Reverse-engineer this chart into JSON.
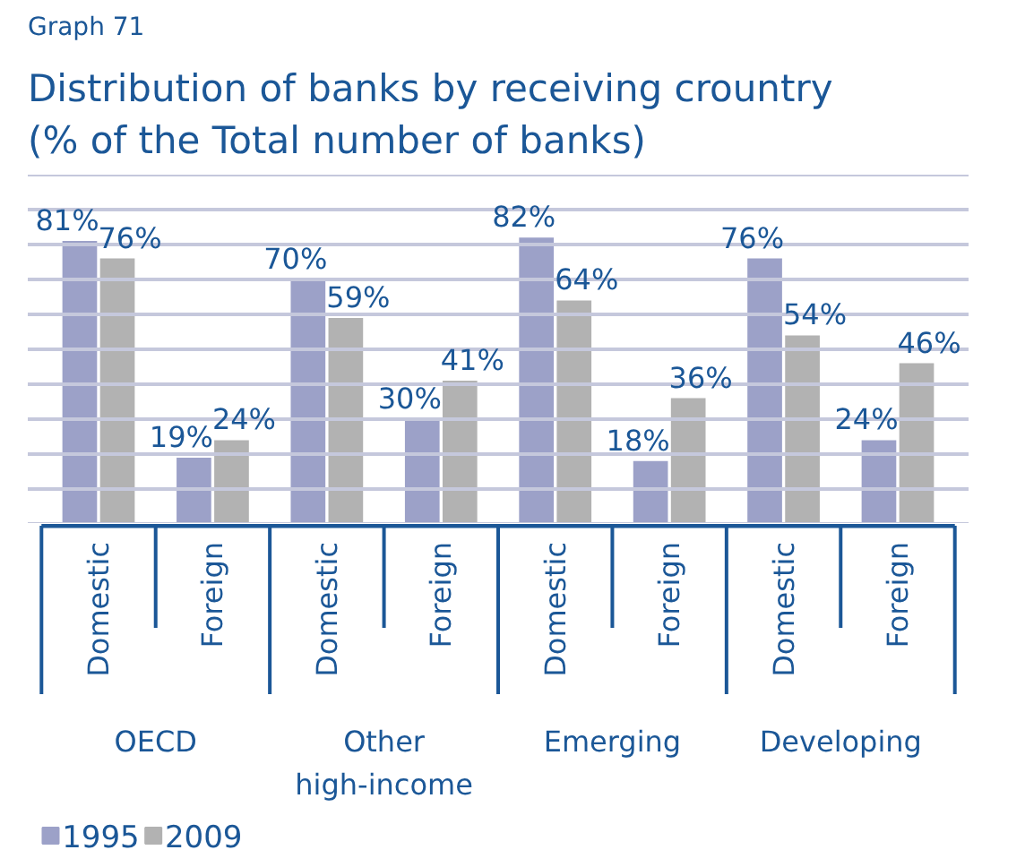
{
  "chart_data": {
    "type": "bar",
    "title": "Distribution of banks by receiving crountry\n(% of the Total number of banks)",
    "annotations": [
      "Graph 71",
      "OECD",
      "Other\nhigh-income",
      "Emerging",
      "Developing"
    ],
    "categories": [
      "Domestic",
      "Foreign",
      "Domestic",
      "Foreign",
      "Domestic",
      "Foreign",
      "Domestic",
      "Foreign"
    ],
    "series": [
      {
        "name": "1995",
        "color": "#9ca1c8",
        "values": [
          81,
          19,
          70,
          30,
          82,
          18,
          76,
          24
        ],
        "value_labels": [
          "81%",
          "19%",
          "70%",
          "30%",
          "82%",
          "18%",
          "76%",
          "24%"
        ]
      },
      {
        "name": "2009",
        "color": "#b2b2b2",
        "values": [
          76,
          24,
          59,
          41,
          64,
          36,
          54,
          46
        ],
        "value_labels": [
          "76%",
          "24%",
          "59%",
          "41%",
          "64%",
          "36%",
          "54%",
          "46%"
        ]
      }
    ],
    "yticks": [
      {
        "value": 0,
        "label": null
      },
      {
        "value": 10,
        "label": null
      },
      {
        "value": 20,
        "label": null
      },
      {
        "value": 30,
        "label": null
      },
      {
        "value": 40,
        "label": null
      },
      {
        "value": 50,
        "label": null
      },
      {
        "value": 60,
        "label": null
      },
      {
        "value": 70,
        "label": null
      },
      {
        "value": 80,
        "label": null
      },
      {
        "value": 90,
        "label": null
      },
      {
        "value": 100,
        "label": null
      }
    ],
    "grid": "y",
    "legend": "bottom left",
    "tick_labels": "x"
  }
}
